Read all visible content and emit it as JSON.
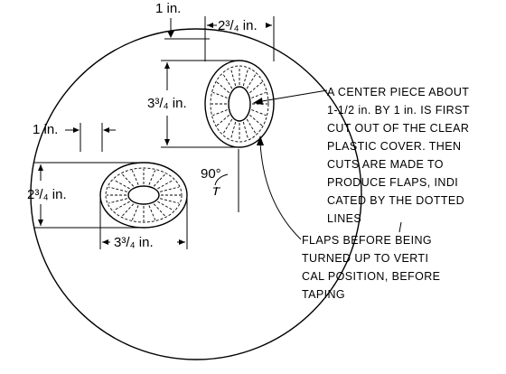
{
  "labels": {
    "top_offset": "1 in.",
    "top_width": "2³/₄ in.",
    "upper_height": "3³/₄ in.",
    "left_offset": "1 in.",
    "lower_height": "2³/₄ in.",
    "lower_width": "3³/₄ in.",
    "angle": "90°"
  },
  "callout_center_piece": [
    "A CENTER PIECE ABOUT",
    "1-1/2 in. BY 1 in. IS FIRST",
    "CUT OUT OF THE CLEAR",
    "PLASTIC COVER. THEN",
    "CUTS ARE MADE TO",
    "PRODUCE FLAPS, INDI",
    "CATED BY THE DOTTED",
    "LINES"
  ],
  "callout_flaps": [
    "FLAPS BEFORE BEING",
    "TURNED UP TO VERTI",
    "CAL POSITION, BEFORE",
    "TAPING"
  ]
}
